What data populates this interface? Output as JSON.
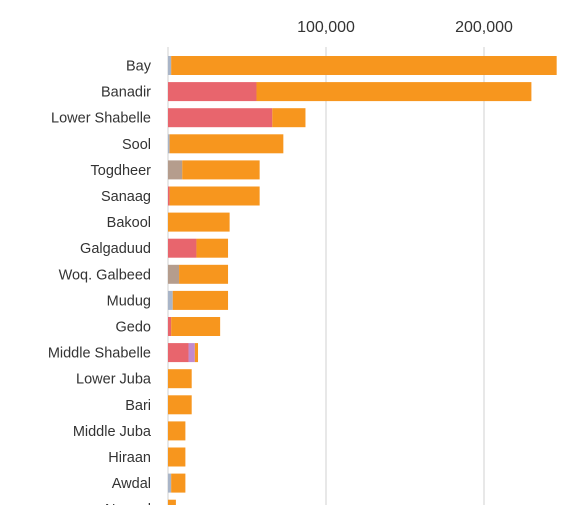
{
  "chart_data": {
    "type": "bar",
    "orientation": "horizontal",
    "stacked": true,
    "title": "",
    "xlabel": "",
    "ylabel": "",
    "xlim": [
      0,
      250000
    ],
    "x_ticks": [
      100000,
      200000
    ],
    "x_tick_labels": [
      "100,000",
      "200,000"
    ],
    "grid": true,
    "legend": "none",
    "categories": [
      "Bay",
      "Banadir",
      "Lower Shabelle",
      "Sool",
      "Togdheer",
      "Sanaag",
      "Bakool",
      "Galgaduud",
      "Woq. Galbeed",
      "Mudug",
      "Gedo",
      "Middle Shabelle",
      "Lower Juba",
      "Bari",
      "Middle Juba",
      "Hiraan",
      "Awdal",
      "Nugaal"
    ],
    "series": [
      {
        "color": "#a9b5c8",
        "values": [
          2000,
          0,
          0,
          1000,
          0,
          0,
          0,
          0,
          0,
          3000,
          0,
          0,
          0,
          0,
          0,
          0,
          2000,
          0
        ]
      },
      {
        "color": "#b59d8d",
        "values": [
          0,
          0,
          0,
          0,
          9000,
          0,
          0,
          0,
          7000,
          0,
          0,
          0,
          0,
          0,
          0,
          0,
          0,
          0
        ]
      },
      {
        "color": "#e8656d",
        "values": [
          0,
          56000,
          66000,
          0,
          0,
          1000,
          0,
          18000,
          0,
          0,
          2000,
          13000,
          0,
          0,
          0,
          0,
          0,
          0
        ]
      },
      {
        "color": "#c28acd",
        "values": [
          0,
          0,
          0,
          0,
          0,
          0,
          0,
          0,
          0,
          0,
          0,
          4000,
          0,
          0,
          0,
          0,
          0,
          0
        ]
      },
      {
        "color": "#f7961e",
        "values": [
          244000,
          174000,
          21000,
          72000,
          49000,
          57000,
          39000,
          20000,
          31000,
          35000,
          31000,
          2000,
          15000,
          15000,
          11000,
          11000,
          9000,
          5000
        ]
      }
    ]
  }
}
